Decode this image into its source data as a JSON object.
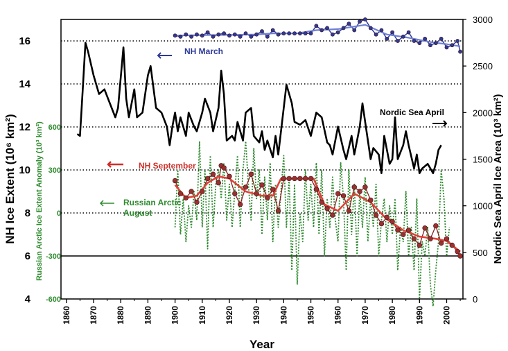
{
  "chart_data": {
    "type": "line",
    "title": "",
    "xlabel": "Year",
    "ylabel_left": "NH Ice Extent (10⁶ km²)",
    "ylabel_left_inner": "Russian Arctic Ice Extent Anomaly (10³ km²)",
    "ylabel_right": "Nordic Sea April Ice Area (10³ km²)",
    "xlim": [
      1858,
      2006
    ],
    "ylim_left": [
      4,
      17
    ],
    "ylim_right": [
      0,
      3000
    ],
    "x_ticks": [
      "1860",
      "1870",
      "1880",
      "1890",
      "1900",
      "1910",
      "1920",
      "1930",
      "1940",
      "1950",
      "1960",
      "1970",
      "1980",
      "1990",
      "2000"
    ],
    "y_ticks_left": [
      "16",
      "14",
      "12",
      "10",
      "8",
      "6",
      "4"
    ],
    "y_ticks_right": [
      "3000",
      "2500",
      "2000",
      "1500",
      "1000",
      "500",
      "0"
    ],
    "y_ticks_green": [
      "600",
      "300",
      "0",
      "-300",
      "-600"
    ],
    "grid_lines_dotted": [
      16,
      14,
      12,
      10,
      8
    ],
    "grid_lines_solid": [
      6
    ],
    "annotations": {
      "nh_march": "NH March",
      "nordic_april": "Nordic Sea April",
      "nh_september": "NH September",
      "russian_line1": "Russian Arctic",
      "russian_line2": "August"
    },
    "colors": {
      "nh_march": "#2d3a9a",
      "nh_march_smooth": "#6f7fd6",
      "nordic": "#000000",
      "nh_september": "#8b1e1e",
      "nh_september_smooth": "#e0423a",
      "russian": "#2e8b2e"
    },
    "series": [
      {
        "name": "NH March",
        "axis": "left",
        "x": [
          1900,
          1902,
          1904,
          1906,
          1908,
          1910,
          1912,
          1914,
          1916,
          1918,
          1920,
          1922,
          1924,
          1926,
          1928,
          1930,
          1932,
          1934,
          1936,
          1938,
          1940,
          1942,
          1944,
          1946,
          1948,
          1950,
          1952,
          1954,
          1956,
          1958,
          1960,
          1962,
          1964,
          1966,
          1968,
          1970,
          1972,
          1974,
          1976,
          1978,
          1980,
          1982,
          1984,
          1986,
          1988,
          1990,
          1992,
          1994,
          1996,
          1998,
          2000,
          2002,
          2004,
          2005
        ],
        "y": [
          16.25,
          16.2,
          16.3,
          16.2,
          16.3,
          16.25,
          16.4,
          16.2,
          16.3,
          16.35,
          16.25,
          16.3,
          16.2,
          16.35,
          16.2,
          16.3,
          16.45,
          16.2,
          16.5,
          16.3,
          16.35,
          16.35,
          16.35,
          16.35,
          16.35,
          16.35,
          16.7,
          16.5,
          16.6,
          16.3,
          16.4,
          16.6,
          16.8,
          16.5,
          16.9,
          17.0,
          16.6,
          16.3,
          16.5,
          16.1,
          16.4,
          16.0,
          16.2,
          16.4,
          16.0,
          15.9,
          16.1,
          15.8,
          15.9,
          16.1,
          15.7,
          15.8,
          16.0,
          15.5
        ]
      },
      {
        "name": "NH March (smoothed)",
        "axis": "left",
        "x": [
          1900,
          1910,
          1920,
          1930,
          1936,
          1945,
          1952,
          1960,
          1970,
          1978,
          1986,
          1994,
          2000,
          2005
        ],
        "y": [
          16.25,
          16.27,
          16.28,
          16.3,
          16.35,
          16.35,
          16.5,
          16.55,
          16.75,
          16.3,
          16.15,
          15.95,
          15.85,
          15.75
        ]
      },
      {
        "name": "Nordic Sea April",
        "axis": "right",
        "x": [
          1864,
          1865,
          1866,
          1867,
          1868,
          1870,
          1872,
          1874,
          1876,
          1878,
          1879,
          1881,
          1882,
          1883,
          1885,
          1886,
          1888,
          1890,
          1891,
          1893,
          1895,
          1897,
          1898,
          1899,
          1900,
          1901,
          1902,
          1904,
          1905,
          1907,
          1908,
          1910,
          1911,
          1913,
          1914,
          1916,
          1917,
          1918,
          1919,
          1921,
          1922,
          1923,
          1925,
          1926,
          1928,
          1929,
          1931,
          1932,
          1933,
          1934,
          1936,
          1937,
          1938,
          1940,
          1941,
          1943,
          1944,
          1946,
          1948,
          1950,
          1952,
          1954,
          1956,
          1957,
          1958,
          1960,
          1962,
          1963,
          1965,
          1966,
          1967,
          1968,
          1969,
          1970,
          1972,
          1973,
          1975,
          1976,
          1977,
          1978,
          1979,
          1980,
          1981,
          1982,
          1984,
          1985,
          1986,
          1988,
          1989,
          1990,
          1991,
          1993,
          1994,
          1995,
          1996,
          1997,
          1998
        ],
        "y": [
          1770,
          1750,
          2250,
          2750,
          2650,
          2400,
          2200,
          2250,
          2100,
          1950,
          2050,
          2700,
          2150,
          1950,
          2250,
          1950,
          2000,
          2400,
          2500,
          2050,
          2000,
          1850,
          1650,
          1850,
          2000,
          1800,
          1950,
          1750,
          2000,
          1850,
          1800,
          2000,
          2150,
          2000,
          1800,
          2050,
          2450,
          2200,
          1700,
          1750,
          1700,
          1900,
          1700,
          2000,
          2050,
          1750,
          1680,
          1800,
          1600,
          1700,
          1520,
          1750,
          1550,
          2050,
          2300,
          2100,
          1900,
          1870,
          1920,
          1750,
          2000,
          1950,
          1680,
          1650,
          1550,
          1850,
          1600,
          1500,
          1750,
          1550,
          1700,
          1850,
          2100,
          1900,
          1500,
          1620,
          1550,
          1350,
          1750,
          1600,
          1450,
          1500,
          1950,
          1500,
          1650,
          1800,
          1650,
          1400,
          1550,
          1350,
          1400,
          1450,
          1400,
          1350,
          1450,
          1600,
          1650
        ]
      },
      {
        "name": "NH September",
        "axis": "left",
        "x": [
          1900,
          1902,
          1904,
          1906,
          1908,
          1910,
          1912,
          1914,
          1916,
          1917,
          1918,
          1920,
          1922,
          1924,
          1926,
          1928,
          1930,
          1932,
          1934,
          1936,
          1938,
          1940,
          1942,
          1944,
          1946,
          1948,
          1950,
          1952,
          1954,
          1956,
          1958,
          1960,
          1962,
          1964,
          1966,
          1968,
          1970,
          1972,
          1974,
          1976,
          1978,
          1980,
          1982,
          1984,
          1986,
          1988,
          1990,
          1992,
          1994,
          1996,
          1998,
          2000,
          2002,
          2004,
          2005
        ],
        "y": [
          9.5,
          8.9,
          8.7,
          9.0,
          8.5,
          9.0,
          9.6,
          9.8,
          9.4,
          10.2,
          10.1,
          9.7,
          8.9,
          8.4,
          9.2,
          9.8,
          8.9,
          9.3,
          8.7,
          9.1,
          8.1,
          9.6,
          9.6,
          9.6,
          9.6,
          9.6,
          9.6,
          9.1,
          8.5,
          8.2,
          7.9,
          8.9,
          8.8,
          8.1,
          9.2,
          9.0,
          9.2,
          8.6,
          7.9,
          7.5,
          7.8,
          7.6,
          7.2,
          7.0,
          7.2,
          6.8,
          6.5,
          7.3,
          6.8,
          7.4,
          6.6,
          6.8,
          6.5,
          6.2,
          6.0
        ]
      },
      {
        "name": "NH September (smoothed)",
        "axis": "left",
        "x": [
          1900,
          1904,
          1908,
          1912,
          1916,
          1920,
          1926,
          1932,
          1936,
          1939,
          1945,
          1951,
          1955,
          1960,
          1966,
          1972,
          1978,
          1984,
          1990,
          1996,
          2000,
          2005
        ],
        "y": [
          9.3,
          8.7,
          8.8,
          9.4,
          9.7,
          9.6,
          9.0,
          8.8,
          8.8,
          9.6,
          9.6,
          9.6,
          8.4,
          8.1,
          8.9,
          8.5,
          7.7,
          7.2,
          6.9,
          6.8,
          6.7,
          6.2
        ]
      },
      {
        "name": "Russian Arctic August",
        "axis": "green",
        "x": [
          1900,
          1901,
          1902,
          1903,
          1904,
          1905,
          1906,
          1907,
          1908,
          1909,
          1910,
          1911,
          1912,
          1913,
          1914,
          1915,
          1916,
          1917,
          1918,
          1919,
          1920,
          1921,
          1922,
          1923,
          1924,
          1925,
          1926,
          1927,
          1928,
          1929,
          1930,
          1931,
          1932,
          1933,
          1934,
          1935,
          1936,
          1937,
          1938,
          1939,
          1940,
          1941,
          1942,
          1943,
          1944,
          1945,
          1946,
          1947,
          1948,
          1949,
          1950,
          1951,
          1952,
          1953,
          1954,
          1955,
          1956,
          1957,
          1958,
          1959,
          1960,
          1961,
          1962,
          1963,
          1964,
          1965,
          1966,
          1967,
          1968,
          1969,
          1970,
          1971,
          1972,
          1973,
          1974,
          1975,
          1976,
          1977,
          1978,
          1979,
          1980,
          1981,
          1982,
          1983,
          1984,
          1985,
          1986,
          1987,
          1988,
          1989,
          1990,
          1991,
          1992,
          1993,
          1994,
          1995,
          1996,
          1997,
          1998,
          1999,
          2000,
          2001
        ],
        "y": [
          -100,
          300,
          -150,
          100,
          -200,
          50,
          -100,
          150,
          -50,
          500,
          -100,
          300,
          -250,
          400,
          -100,
          200,
          300,
          100,
          350,
          -50,
          200,
          -100,
          150,
          400,
          -100,
          300,
          500,
          200,
          -50,
          450,
          100,
          300,
          -150,
          250,
          -50,
          350,
          -200,
          200,
          -100,
          150,
          400,
          -100,
          250,
          -400,
          200,
          -500,
          0,
          -200,
          300,
          -50,
          200,
          -100,
          350,
          -150,
          300,
          -300,
          100,
          -100,
          250,
          -50,
          -200,
          350,
          100,
          -400,
          300,
          -150,
          200,
          -300,
          150,
          -100,
          250,
          -200,
          100,
          -100,
          200,
          -300,
          -50,
          100,
          -200,
          50,
          -150,
          100,
          -400,
          -100,
          -200,
          150,
          -300,
          -100,
          -400,
          100,
          -600,
          -200,
          -300,
          -100,
          -500,
          -650,
          -400,
          -200,
          300,
          100,
          -300,
          -100
        ]
      }
    ]
  }
}
